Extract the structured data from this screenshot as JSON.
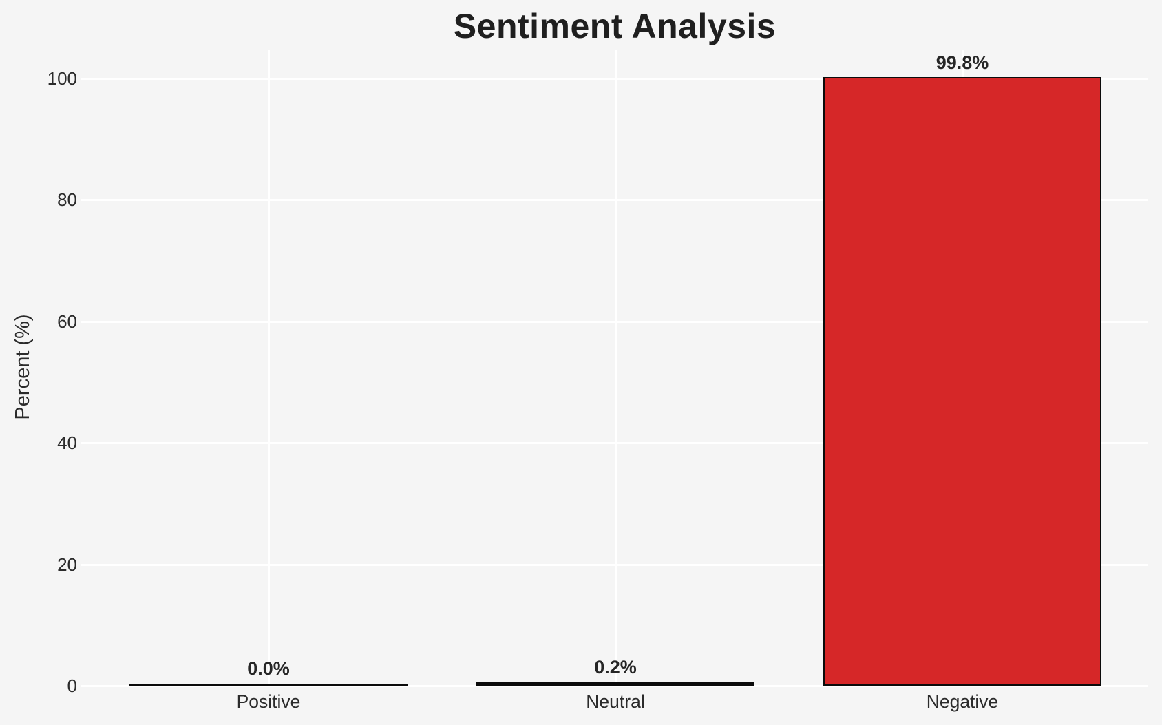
{
  "chart_data": {
    "type": "bar",
    "title": "Sentiment Analysis",
    "categories": [
      "Positive",
      "Neutral",
      "Negative"
    ],
    "values": [
      0.0,
      0.2,
      99.8
    ],
    "value_labels": [
      "0.0%",
      "0.2%",
      "99.8%"
    ],
    "xlabel": "",
    "ylabel": "Percent (%)",
    "ylim": [
      0,
      105
    ],
    "yticks": [
      0,
      20,
      40,
      60,
      80,
      100
    ],
    "ytick_labels_top_to_bottom": [
      "100",
      "80",
      "60",
      "40",
      "20",
      "0"
    ],
    "grid": "white gridlines, horizontal at yticks and vertical at category centers",
    "legend": "none",
    "colors": {
      "background": "#f5f5f5",
      "gridline": "#ffffff",
      "bar_fill_negative": "#d62728",
      "bar_edge": "#0b0b0b",
      "title_text": "#1f1f1f",
      "tick_text": "#2b2b2b",
      "value_label_text": "#262626"
    }
  }
}
